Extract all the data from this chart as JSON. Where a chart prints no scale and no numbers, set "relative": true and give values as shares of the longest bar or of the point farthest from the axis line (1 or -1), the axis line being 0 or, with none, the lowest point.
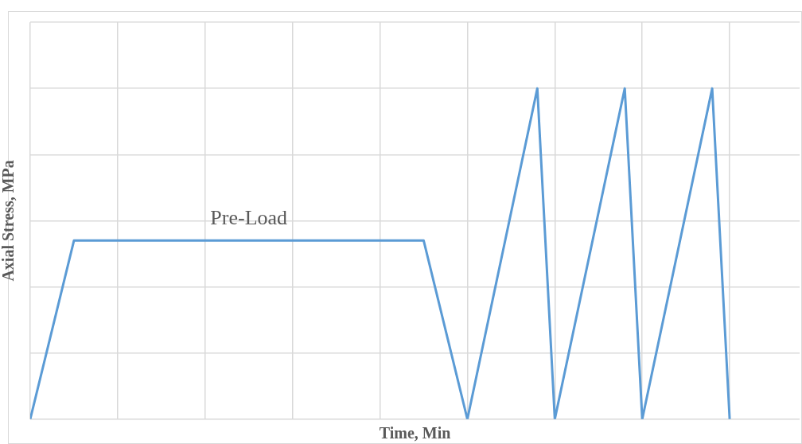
{
  "chart_data": {
    "type": "line",
    "relative": true,
    "xlabel": "Time, Min",
    "ylabel": "Axial Stress, MPa",
    "categories": [
      null,
      null,
      null,
      null,
      null,
      null,
      null,
      null,
      null,
      null,
      null,
      null,
      null,
      null,
      null,
      null,
      null,
      null,
      null,
      null,
      null,
      null,
      null,
      null,
      null,
      null,
      null,
      null,
      null,
      null,
      null,
      null,
      null,
      null,
      null,
      null,
      null,
      null,
      null,
      null,
      null,
      null,
      null,
      null,
      null,
      null,
      null,
      null,
      null,
      null,
      null,
      null,
      null,
      null,
      null,
      null,
      null,
      null,
      null,
      null,
      null,
      null,
      null,
      null,
      null,
      null,
      null,
      null,
      null,
      null,
      null,
      null,
      null,
      null,
      null,
      null,
      null,
      null,
      null,
      null,
      null,
      null,
      null,
      null,
      null,
      null,
      null,
      null,
      null
    ],
    "series": [
      {
        "color": "#5b9bd5",
        "values": [
          0,
          null,
          null,
          null,
          null,
          0.54,
          null,
          null,
          null,
          null,
          null,
          null,
          null,
          null,
          null,
          null,
          null,
          null,
          null,
          null,
          null,
          null,
          null,
          null,
          null,
          null,
          null,
          null,
          null,
          null,
          null,
          null,
          null,
          null,
          null,
          null,
          null,
          null,
          null,
          null,
          null,
          null,
          null,
          null,
          null,
          0.54,
          null,
          null,
          null,
          null,
          0,
          null,
          null,
          null,
          null,
          null,
          null,
          null,
          1,
          null,
          0,
          null,
          null,
          null,
          null,
          null,
          null,
          null,
          1,
          null,
          0,
          null,
          null,
          null,
          null,
          null,
          null,
          null,
          1,
          null,
          0,
          null,
          null,
          null,
          null,
          null,
          null,
          null,
          null
        ]
      }
    ],
    "annotations": [
      "Pre-Load"
    ],
    "grid": true,
    "legend": false,
    "marker": "none",
    "line_style": "solid"
  }
}
